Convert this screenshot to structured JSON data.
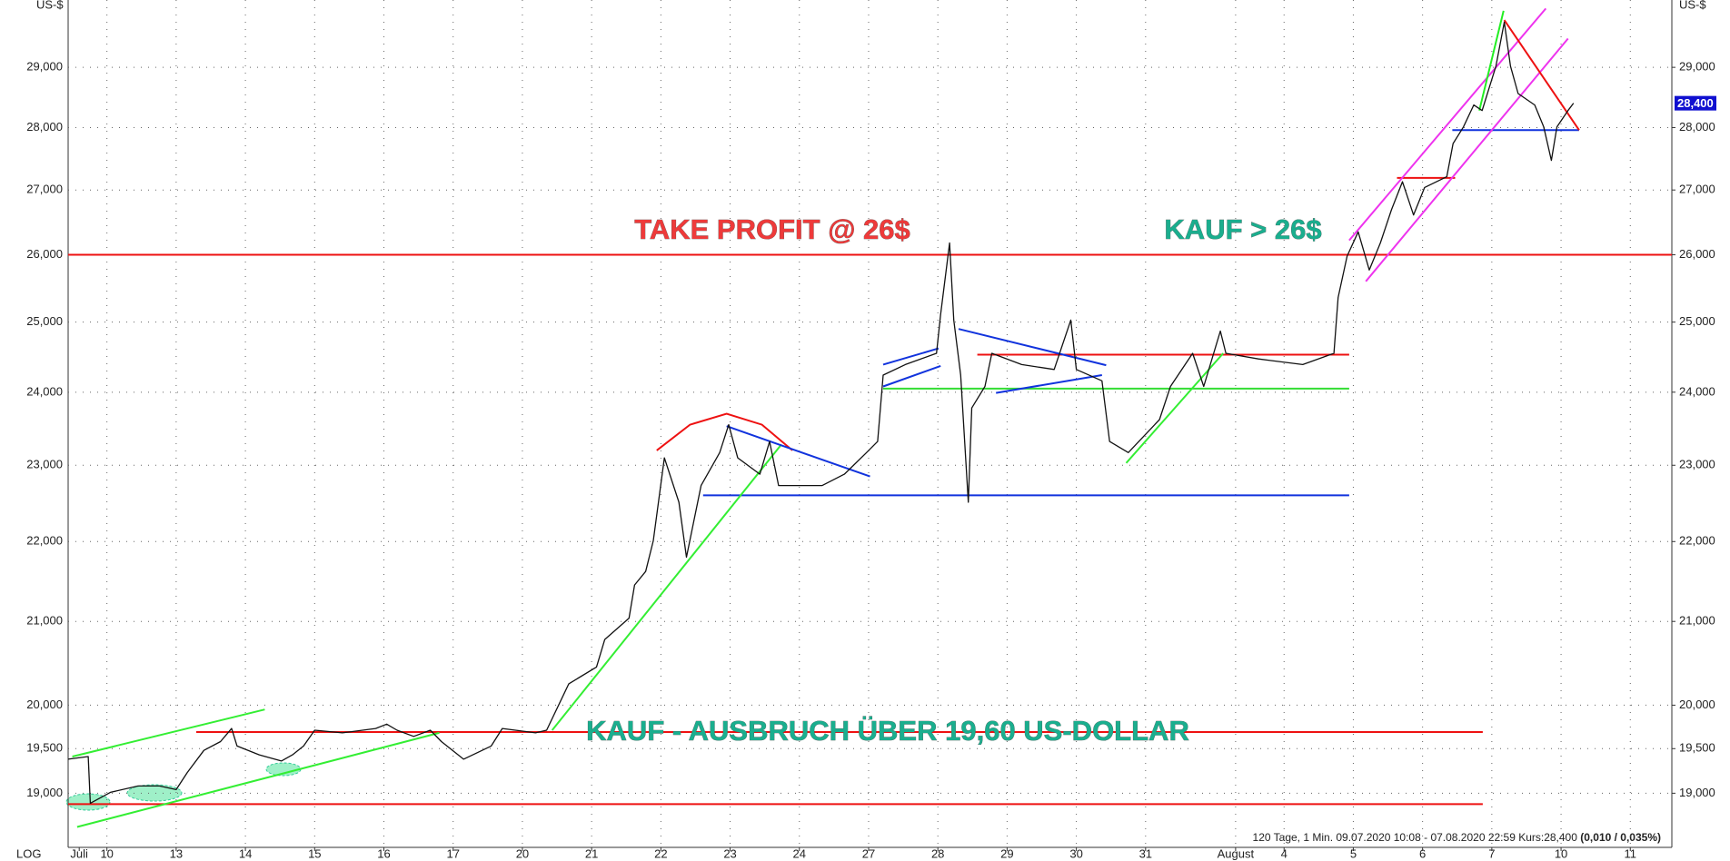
{
  "chart_data": {
    "type": "line",
    "log_scale": true,
    "grid": true,
    "y_unit_label": "US-$",
    "scale_label": "LOG",
    "info": "120 Tage, 1 Min. 09.07.2020 10:08 - 07.08.2020 22:59  Kurs:28,400",
    "info_bold": "(0,010 / 0,035%)",
    "xlim": [
      0.44,
      23.6
    ],
    "ylim": [
      18410,
      30160
    ],
    "xticks": [
      {
        "value": 0.6,
        "label": "Juli"
      },
      {
        "value": 1,
        "label": "10"
      },
      {
        "value": 2,
        "label": "13"
      },
      {
        "value": 3,
        "label": "14"
      },
      {
        "value": 4,
        "label": "15"
      },
      {
        "value": 5,
        "label": "16"
      },
      {
        "value": 6,
        "label": "17"
      },
      {
        "value": 7,
        "label": "20"
      },
      {
        "value": 8,
        "label": "21"
      },
      {
        "value": 9,
        "label": "22"
      },
      {
        "value": 10,
        "label": "23"
      },
      {
        "value": 11,
        "label": "24"
      },
      {
        "value": 12,
        "label": "27"
      },
      {
        "value": 13,
        "label": "28"
      },
      {
        "value": 14,
        "label": "29"
      },
      {
        "value": 15,
        "label": "30"
      },
      {
        "value": 16,
        "label": "31"
      },
      {
        "value": 17.3,
        "label": "August"
      },
      {
        "value": 18,
        "label": "4"
      },
      {
        "value": 19,
        "label": "5"
      },
      {
        "value": 20,
        "label": "6"
      },
      {
        "value": 21,
        "label": "7"
      },
      {
        "value": 22,
        "label": "10"
      },
      {
        "value": 23,
        "label": "11"
      }
    ],
    "yticks": [
      {
        "value": 19000,
        "label": "19,000"
      },
      {
        "value": 19500,
        "label": "19,500"
      },
      {
        "value": 20000,
        "label": "20,000"
      },
      {
        "value": 21000,
        "label": "21,000"
      },
      {
        "value": 22000,
        "label": "22,000"
      },
      {
        "value": 23000,
        "label": "23,000"
      },
      {
        "value": 24000,
        "label": "24,000"
      },
      {
        "value": 25000,
        "label": "25,000"
      },
      {
        "value": 26000,
        "label": "26,000"
      },
      {
        "value": 27000,
        "label": "27,000"
      },
      {
        "value": 28000,
        "label": "28,000"
      },
      {
        "value": 29000,
        "label": "29,000"
      }
    ],
    "last_price": {
      "value": 28400,
      "label": "28,400",
      "color": "#1010d0"
    },
    "x": [
      0.44,
      0.73,
      0.76,
      1.05,
      1.45,
      1.76,
      2.0,
      2.16,
      2.4,
      2.64,
      2.8,
      2.88,
      3.2,
      3.52,
      3.68,
      3.84,
      4.0,
      4.4,
      4.88,
      5.04,
      5.19,
      5.43,
      5.67,
      5.83,
      6.15,
      6.55,
      6.71,
      7.19,
      7.35,
      7.67,
      8.07,
      8.19,
      8.54,
      8.62,
      8.78,
      8.89,
      9.05,
      9.26,
      9.37,
      9.58,
      9.85,
      9.98,
      10.11,
      10.43,
      10.57,
      10.7,
      11.02,
      11.33,
      11.65,
      11.97,
      12.13,
      12.21,
      12.53,
      12.98,
      13.04,
      13.17,
      13.23,
      13.33,
      13.44,
      13.49,
      13.68,
      13.78,
      14.21,
      14.68,
      14.92,
      15.0,
      15.37,
      15.48,
      15.75,
      16.2,
      16.36,
      16.68,
      16.84,
      17.08,
      17.16,
      17.63,
      18.27,
      18.72,
      18.78,
      18.91,
      19.07,
      19.23,
      19.39,
      19.55,
      19.71,
      19.87,
      20.03,
      20.35,
      20.44,
      20.59,
      20.74,
      20.86,
      21.06,
      21.18,
      21.27,
      21.38,
      21.62,
      21.75,
      21.86,
      21.94,
      22.1,
      22.18
    ],
    "series": [
      {
        "color": "#111111",
        "values": [
          19380,
          19410,
          18890,
          19010,
          19080,
          19080,
          19040,
          19230,
          19480,
          19580,
          19730,
          19530,
          19430,
          19360,
          19430,
          19530,
          19710,
          19680,
          19730,
          19780,
          19710,
          19640,
          19710,
          19580,
          19380,
          19530,
          19730,
          19680,
          19710,
          20250,
          20450,
          20780,
          21040,
          21450,
          21620,
          22010,
          23100,
          22510,
          21800,
          22730,
          23170,
          23550,
          23100,
          22880,
          23320,
          22730,
          22730,
          22730,
          22880,
          23170,
          23320,
          24240,
          24390,
          24550,
          25110,
          26180,
          25030,
          24240,
          22510,
          23780,
          24080,
          24550,
          24390,
          24320,
          25030,
          24320,
          24160,
          23320,
          23170,
          23620,
          24080,
          24550,
          24080,
          24870,
          24550,
          24470,
          24390,
          24550,
          25360,
          25980,
          26350,
          25770,
          26180,
          26690,
          27130,
          26610,
          27040,
          27210,
          27740,
          28010,
          28370,
          28280,
          29020,
          29775,
          29020,
          28560,
          28370,
          28010,
          27470,
          28010,
          28280,
          28400
        ]
      }
    ],
    "overlays": [
      {
        "color": "#ee1111",
        "x": [
          0.44,
          23.6
        ],
        "y": [
          26000,
          26000
        ]
      },
      {
        "color": "#ee1111",
        "x": [
          2.29,
          20.87
        ],
        "y": [
          19690,
          19690
        ]
      },
      {
        "color": "#ee1111",
        "x": [
          0.44,
          20.87
        ],
        "y": [
          18880,
          18880
        ]
      },
      {
        "color": "#1133dd",
        "x": [
          9.61,
          18.94
        ],
        "y": [
          22600,
          22600
        ]
      },
      {
        "color": "#ee1111",
        "x": [
          13.57,
          18.94
        ],
        "y": [
          24530,
          24530
        ]
      },
      {
        "color": "#33dd33",
        "x": [
          12.21,
          18.94
        ],
        "y": [
          24050,
          24050
        ]
      },
      {
        "color": "#1133dd",
        "x": [
          20.43,
          22.26
        ],
        "y": [
          27960,
          27960
        ]
      },
      {
        "color": "#ee1111",
        "x": [
          19.63,
          20.47
        ],
        "y": [
          27190,
          27190
        ]
      },
      {
        "color": "#33ee33",
        "x": [
          0.5,
          3.28
        ],
        "y": [
          19410,
          19950
        ]
      },
      {
        "color": "#33ee33",
        "x": [
          0.57,
          5.8
        ],
        "y": [
          18630,
          19680
        ]
      },
      {
        "color": "#33ee33",
        "x": [
          7.43,
          10.74
        ],
        "y": [
          19710,
          23280
        ]
      },
      {
        "color": "#ee1111",
        "x": [
          8.94,
          9.42,
          9.95,
          10.46,
          10.9
        ],
        "y": [
          23200,
          23550,
          23700,
          23550,
          23200
        ]
      },
      {
        "color": "#1133dd",
        "x": [
          9.95,
          12.02
        ],
        "y": [
          23530,
          22850
        ]
      },
      {
        "color": "#1133dd",
        "x": [
          12.21,
          13.01
        ],
        "y": [
          24390,
          24620
        ]
      },
      {
        "color": "#1133dd",
        "x": [
          12.21,
          13.04
        ],
        "y": [
          24080,
          24370
        ]
      },
      {
        "color": "#1133dd",
        "x": [
          13.3,
          15.43
        ],
        "y": [
          24900,
          24380
        ]
      },
      {
        "color": "#1133dd",
        "x": [
          13.84,
          15.37
        ],
        "y": [
          23990,
          24240
        ]
      },
      {
        "color": "#33ee33",
        "x": [
          15.72,
          17.12
        ],
        "y": [
          23030,
          24550
        ]
      },
      {
        "color": "#ee33ee",
        "x": [
          18.94,
          21.78
        ],
        "y": [
          26220,
          30010
        ]
      },
      {
        "color": "#ee33ee",
        "x": [
          19.18,
          22.1
        ],
        "y": [
          25600,
          29490
        ]
      },
      {
        "color": "#22ee22",
        "x": [
          20.82,
          21.17
        ],
        "y": [
          28280,
          29970
        ]
      },
      {
        "color": "#ee1111",
        "x": [
          21.18,
          22.26
        ],
        "y": [
          29810,
          27960
        ]
      }
    ],
    "annotations": [
      {
        "text": "TAKE PROFIT @ 26$",
        "color": "#ee3a3a"
      },
      {
        "text": "KAUF > 26$",
        "color": "#1aae8e"
      },
      {
        "text": "KAUF - AUSBRUCH ÜBER 19,60 US-DOLLAR",
        "color": "#1aae8e"
      }
    ]
  }
}
